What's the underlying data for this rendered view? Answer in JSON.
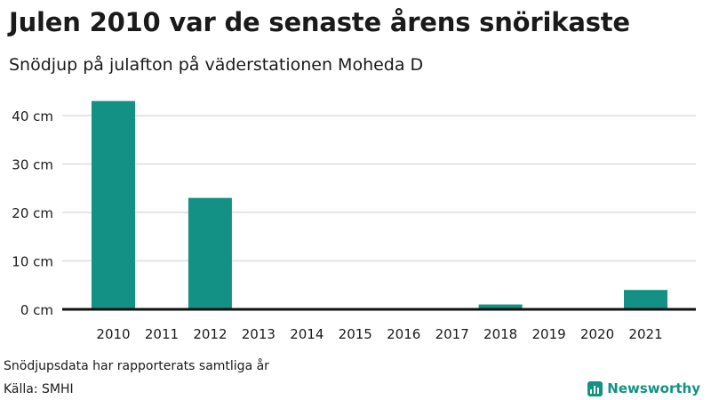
{
  "title": "Julen 2010 var de senaste årens snörikaste",
  "subtitle": "Snödjup på julafton på väderstationen Moheda D",
  "footnote": "Snödjupsdata har rapporterats samtliga år",
  "source": "Källa: SMHI",
  "brand": {
    "name": "Newsworthy",
    "icon": "bar-chart-icon"
  },
  "colors": {
    "bar": "#139185",
    "grid": "#dddddd",
    "axis": "#111111",
    "text": "#1a1a1a"
  },
  "chart_data": {
    "type": "bar",
    "categories": [
      "2010",
      "2011",
      "2012",
      "2013",
      "2014",
      "2015",
      "2016",
      "2017",
      "2018",
      "2019",
      "2020",
      "2021"
    ],
    "values": [
      43,
      0,
      23,
      0,
      0,
      0,
      0,
      0,
      1,
      0,
      0,
      4
    ],
    "unit": "cm",
    "ylim": [
      0,
      40
    ],
    "yticks": [
      0,
      10,
      20,
      30,
      40
    ],
    "ytick_labels": [
      "0 cm",
      "10 cm",
      "20 cm",
      "30 cm",
      "40 cm"
    ],
    "grid": true,
    "legend": false,
    "xlabel": "",
    "ylabel": ""
  }
}
